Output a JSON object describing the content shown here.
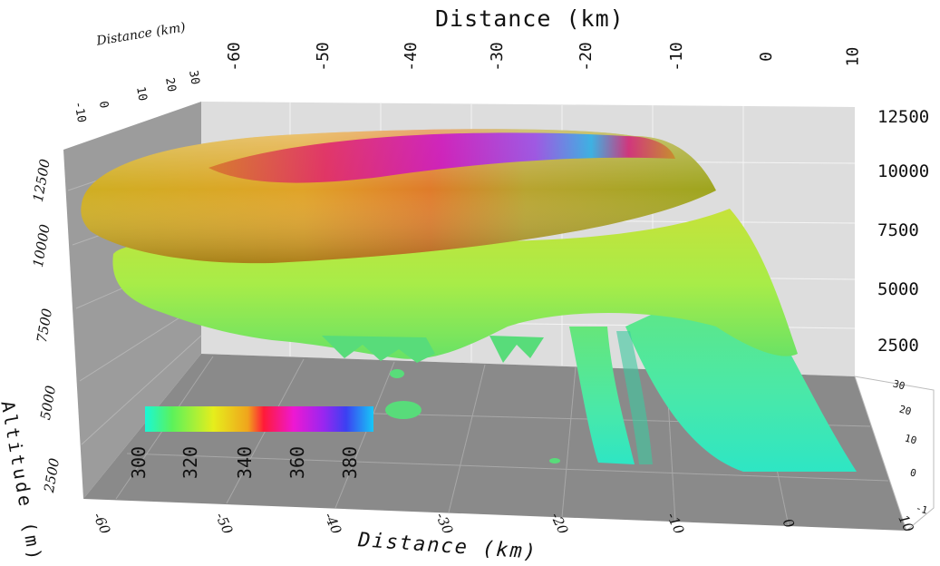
{
  "axes": {
    "top_title": "Distance (km)",
    "bottom_title": "Distance (km)",
    "left_title": "Altitude (m)",
    "top_left_title": "Distance (km)",
    "top_ticks": [
      "-60",
      "-50",
      "-40",
      "-30",
      "-20",
      "-10",
      "0",
      "10"
    ],
    "bottom_ticks": [
      "-60",
      "-50",
      "-40",
      "-30",
      "-20",
      "-10",
      "0",
      "10"
    ],
    "right_altitude_ticks": [
      "12500",
      "10000",
      "7500",
      "5000",
      "2500"
    ],
    "left_altitude_ticks": [
      "12500",
      "10000",
      "7500",
      "5000",
      "2500"
    ],
    "right_depth_ticks": [
      "30",
      "20",
      "10",
      "0",
      "-1"
    ],
    "top_left_depth_ticks": [
      "-10",
      "0",
      "10",
      "20",
      "30"
    ]
  },
  "colorbar": {
    "ticks": [
      "300",
      "320",
      "340",
      "360",
      "380"
    ],
    "colors": [
      "#19f7d6",
      "#5cf25a",
      "#e6ee1c",
      "#f0a41c",
      "#ff1a38",
      "#ee18d2",
      "#9a26f0",
      "#3c40f2",
      "#16c8f6"
    ]
  }
}
